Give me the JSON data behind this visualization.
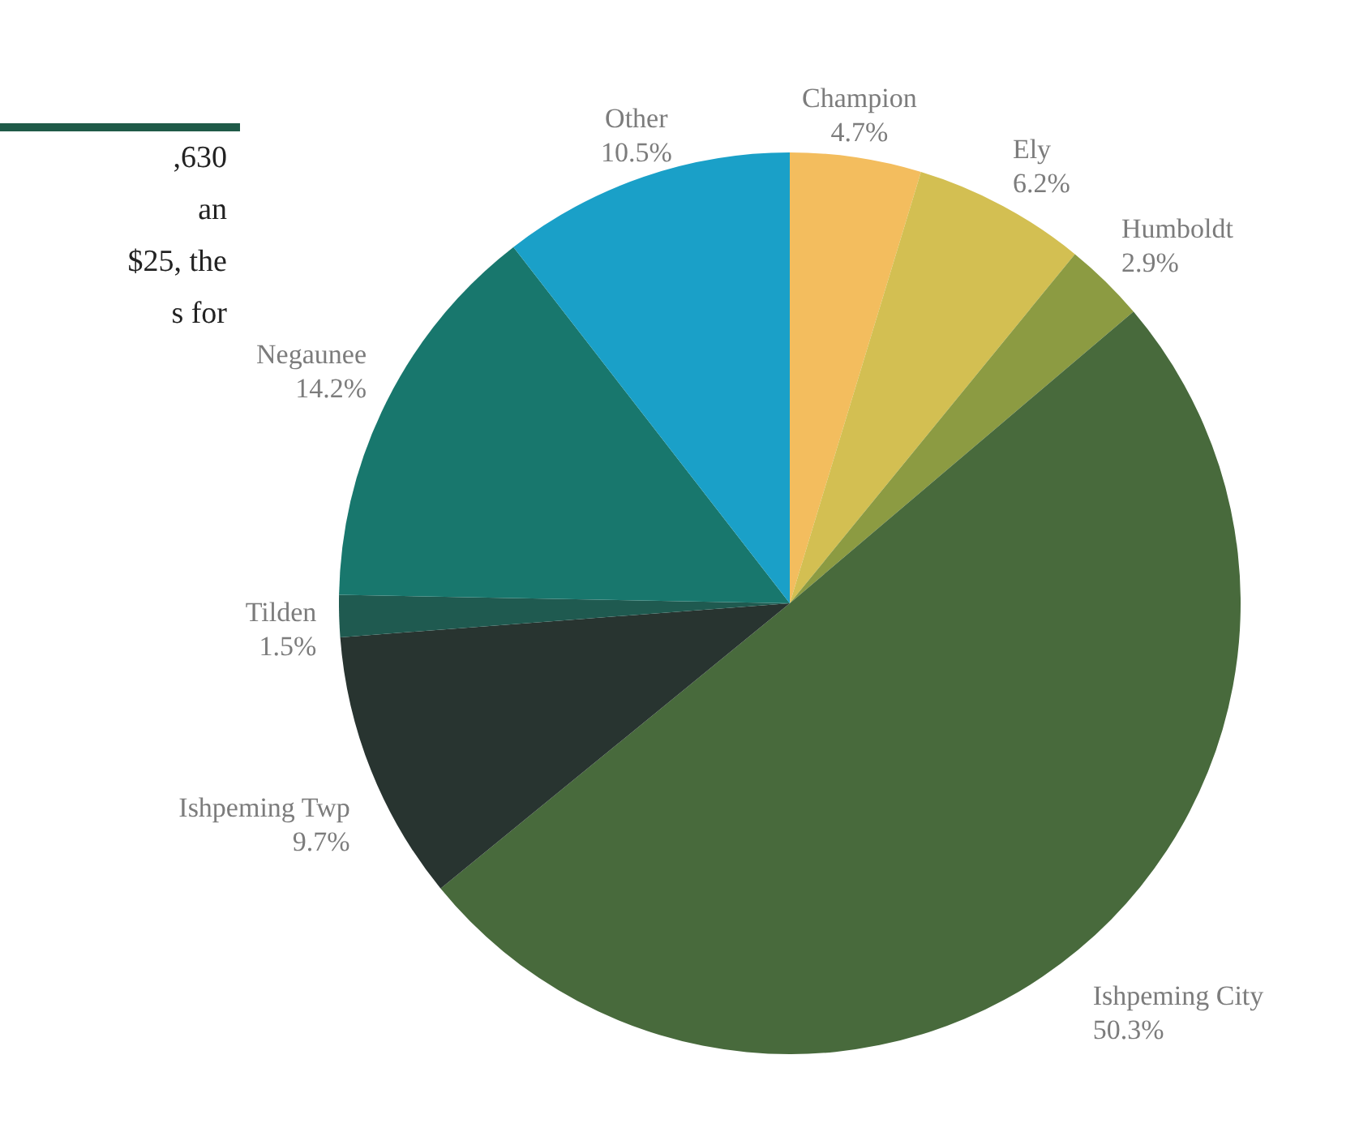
{
  "chart_data": {
    "type": "pie",
    "categories": [
      "Champion",
      "Ely",
      "Humboldt",
      "Ishpeming City",
      "Ishpeming Twp",
      "Tilden",
      "Negaunee",
      "Other"
    ],
    "values": [
      4.7,
      6.2,
      2.9,
      50.3,
      9.7,
      1.5,
      14.2,
      10.5
    ],
    "value_labels": [
      "4.7%",
      "6.2%",
      "2.9%",
      "50.3%",
      "9.7%",
      "1.5%",
      "14.2%",
      "10.5%"
    ],
    "colors": [
      "#f3bd5e",
      "#d3bf52",
      "#8c9b42",
      "#486a3c",
      "#283430",
      "#1f5a50",
      "#18776d",
      "#1aa0c8"
    ],
    "annotations": [
      ",630",
      "an",
      "$25, the",
      "s for"
    ],
    "legend": false
  }
}
